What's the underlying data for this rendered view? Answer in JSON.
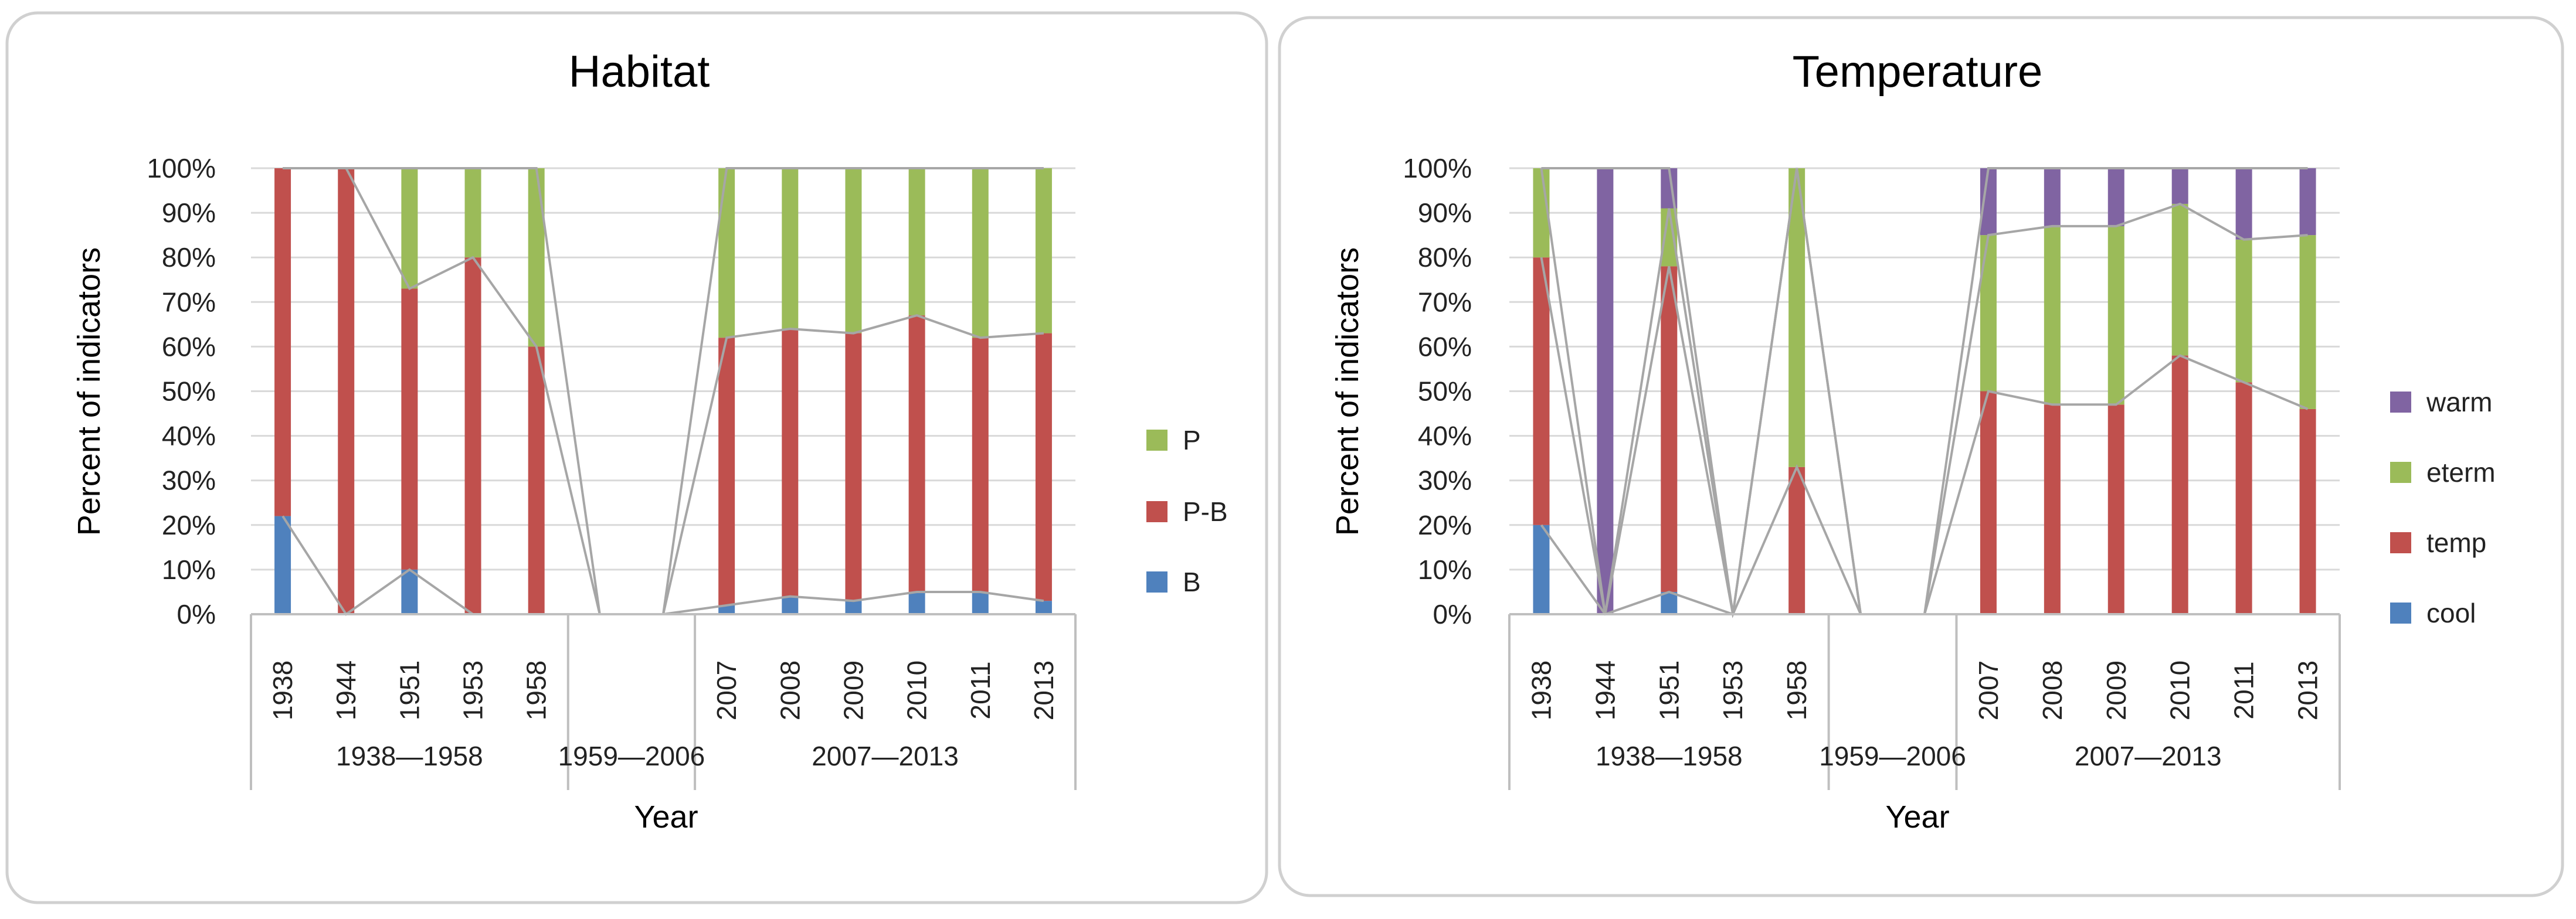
{
  "colors": {
    "B": "#4f81bd",
    "P-B": "#c0504d",
    "P": "#9bbb59",
    "cool": "#4f81bd",
    "temp": "#c0504d",
    "eterm": "#9bbb59",
    "warm": "#8064a2",
    "connector": "#a6a6a6",
    "grid": "#d9d9d9",
    "axis": "#bfbfbf",
    "panel_border": "#d0d0d0"
  },
  "chart_data": [
    {
      "type": "bar",
      "stacked": true,
      "title": "Habitat",
      "xlabel": "Year",
      "ylabel": "Percent of indicators",
      "ylim": [
        0,
        100
      ],
      "yticks": [
        "0%",
        "10%",
        "20%",
        "30%",
        "40%",
        "50%",
        "60%",
        "70%",
        "80%",
        "90%",
        "100%"
      ],
      "categories": [
        "1938",
        "1944",
        "1951",
        "1953",
        "1958",
        "",
        "",
        "2007",
        "2008",
        "2009",
        "2010",
        "2011",
        "2013"
      ],
      "groups": [
        {
          "label": "1938—1958",
          "count": 5
        },
        {
          "label": "1959—2006",
          "count": 2
        },
        {
          "label": "2007—2013",
          "count": 6
        }
      ],
      "series": [
        {
          "name": "B",
          "values": [
            22,
            0,
            10,
            0,
            0,
            0,
            0,
            2,
            4,
            3,
            5,
            5,
            3
          ]
        },
        {
          "name": "P-B",
          "values": [
            78,
            100,
            63,
            80,
            60,
            0,
            0,
            60,
            60,
            60,
            62,
            57,
            60
          ]
        },
        {
          "name": "P",
          "values": [
            0,
            0,
            27,
            20,
            40,
            0,
            0,
            38,
            36,
            37,
            33,
            38,
            37
          ]
        }
      ],
      "legend": [
        "P",
        "P-B",
        "B"
      ]
    },
    {
      "type": "bar",
      "stacked": true,
      "title": "Temperature",
      "xlabel": "Year",
      "ylabel": "Percent of indicators",
      "ylim": [
        0,
        100
      ],
      "yticks": [
        "0%",
        "10%",
        "20%",
        "30%",
        "40%",
        "50%",
        "60%",
        "70%",
        "80%",
        "90%",
        "100%"
      ],
      "categories": [
        "1938",
        "1944",
        "1951",
        "1953",
        "1958",
        "",
        "",
        "2007",
        "2008",
        "2009",
        "2010",
        "2011",
        "2013"
      ],
      "groups": [
        {
          "label": "1938—1958",
          "count": 5
        },
        {
          "label": "1959—2006",
          "count": 2
        },
        {
          "label": "2007—2013",
          "count": 6
        }
      ],
      "series": [
        {
          "name": "cool",
          "values": [
            20,
            0,
            5,
            0,
            0,
            0,
            0,
            0,
            0,
            0,
            0,
            0,
            0
          ]
        },
        {
          "name": "temp",
          "values": [
            60,
            0,
            73,
            0,
            33,
            0,
            0,
            50,
            47,
            47,
            58,
            52,
            46
          ]
        },
        {
          "name": "eterm",
          "values": [
            20,
            0,
            13,
            0,
            67,
            0,
            0,
            35,
            40,
            40,
            34,
            32,
            39
          ]
        },
        {
          "name": "warm",
          "values": [
            0,
            100,
            9,
            0,
            0,
            0,
            0,
            15,
            13,
            13,
            8,
            16,
            15
          ]
        }
      ],
      "legend": [
        "warm",
        "eterm",
        "temp",
        "cool"
      ]
    }
  ]
}
